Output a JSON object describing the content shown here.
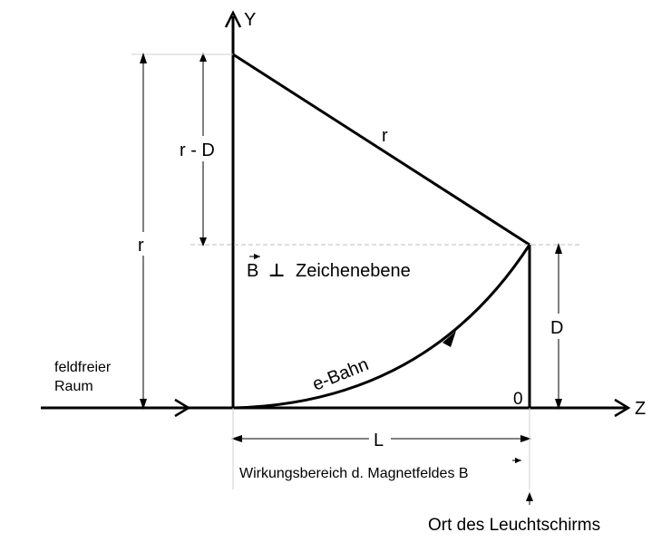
{
  "axes": {
    "y_label": "Y",
    "z_label": "Z"
  },
  "labels": {
    "r_top_left": "r - D",
    "r_hypotenuse": "r",
    "r_outer": "r",
    "field": "Zeichenebene",
    "field_symbol": "B",
    "perp_symbol": "⊥",
    "D": "D",
    "origin": "0",
    "path": "e-Bahn",
    "field_free_1": "feldfreier",
    "field_free_2": "Raum",
    "L": "L",
    "field_range": "Wirkungsbereich d. Magnetfeldes B",
    "screen": "Ort des Leuchtschirms"
  }
}
